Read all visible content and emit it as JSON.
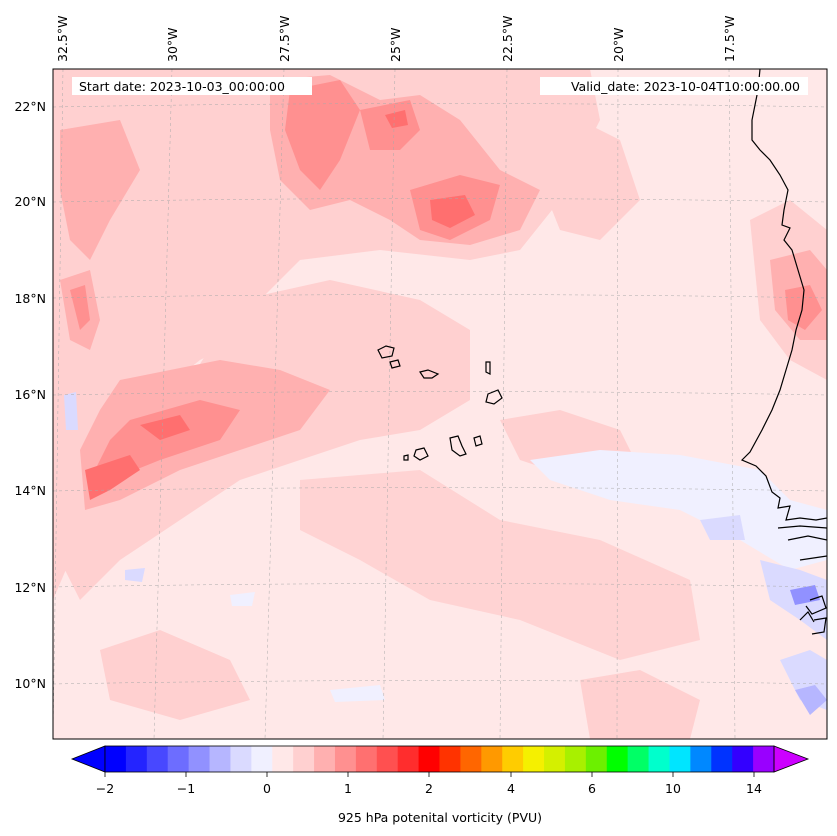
{
  "map": {
    "start_date_label": "Start date: 2023-10-03_00:00:00",
    "valid_date_label": "Valid_date: 2023-10-04T10:00:00.00",
    "lon_ticks": [
      {
        "label": "32.5°W",
        "lon": -32.5
      },
      {
        "label": "30°W",
        "lon": -30
      },
      {
        "label": "27.5°W",
        "lon": -27.5
      },
      {
        "label": "25°W",
        "lon": -25
      },
      {
        "label": "22.5°W",
        "lon": -22.5
      },
      {
        "label": "20°W",
        "lon": -20
      },
      {
        "label": "17.5°W",
        "lon": -17.5
      }
    ],
    "lat_ticks": [
      {
        "label": "22°N",
        "lat": 22
      },
      {
        "label": "20°N",
        "lat": 20
      },
      {
        "label": "18°N",
        "lat": 18
      },
      {
        "label": "16°N",
        "lat": 16
      },
      {
        "label": "14°N",
        "lat": 14
      },
      {
        "label": "12°N",
        "lat": 12
      },
      {
        "label": "10°N",
        "lat": 10
      }
    ],
    "background_color": "#ffe8e8",
    "coastline_color": "#000000",
    "gridlines": true
  },
  "colorbar": {
    "title": "925 hPa potenital vorticity (PVU)",
    "tick_labels": [
      "−2",
      "−1",
      "0",
      "1",
      "2",
      "4",
      "6",
      "10",
      "14"
    ],
    "colors": [
      "#0000ff",
      "#2424ff",
      "#4848ff",
      "#6d6dff",
      "#9191ff",
      "#b6b6ff",
      "#dadaff",
      "#f0f0ff",
      "#ffe8e8",
      "#ffd0d0",
      "#ffb0b0",
      "#ff9090",
      "#ff7070",
      "#ff5050",
      "#ff2d2d",
      "#ff0000",
      "#ff3300",
      "#ff6600",
      "#ff9900",
      "#ffcc00",
      "#f5f000",
      "#d4f000",
      "#a8f000",
      "#6cf000",
      "#00ff00",
      "#00ff66",
      "#00ffcc",
      "#00e5ff",
      "#0088ff",
      "#0033ff",
      "#3300ff",
      "#9900ff"
    ],
    "extend_low_color": "#0000ff",
    "extend_high_color": "#cc00ff"
  }
}
